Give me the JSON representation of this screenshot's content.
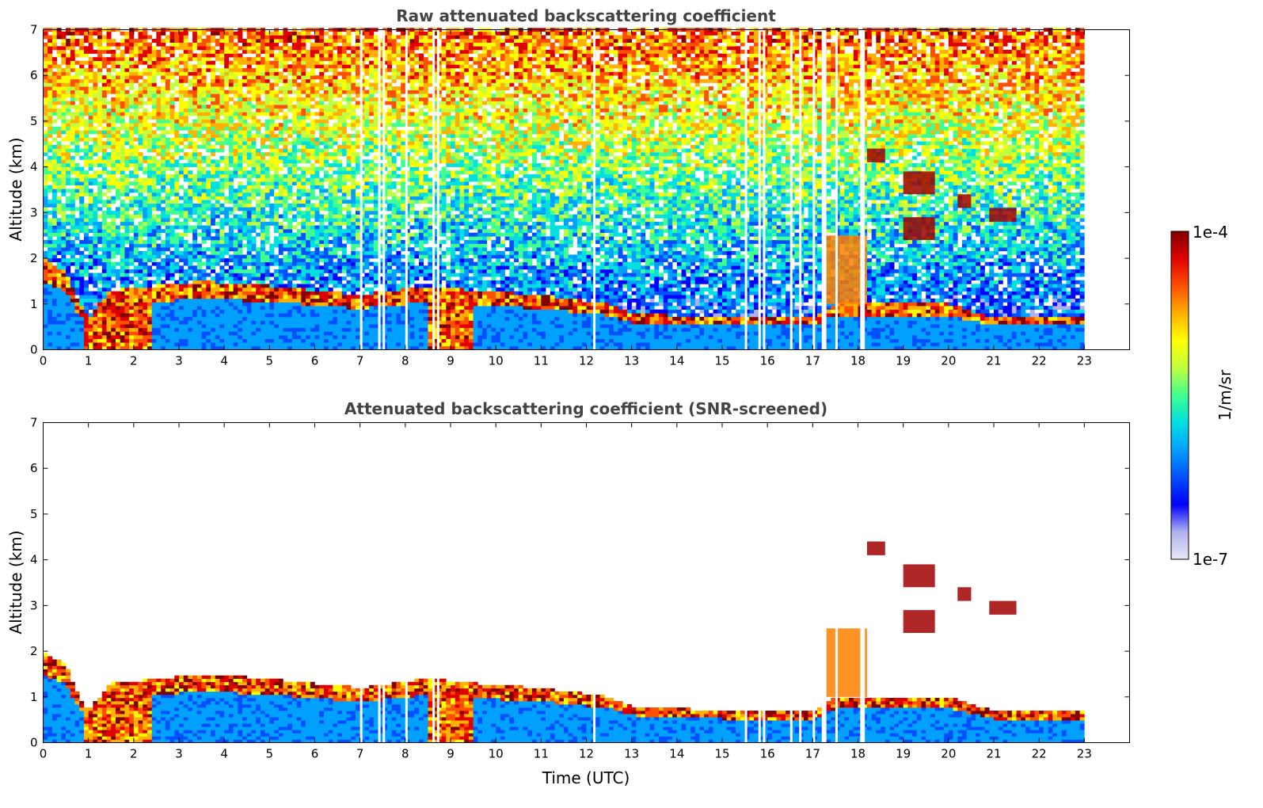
{
  "chart_data": [
    {
      "type": "heatmap",
      "title": "Raw attenuated backscattering coefficient",
      "xlabel": "",
      "ylabel": "Altitude (km)",
      "xlim": [
        0,
        24
      ],
      "ylim": [
        0,
        7
      ],
      "x_ticks": [
        "0",
        "1",
        "2",
        "3",
        "4",
        "5",
        "6",
        "7",
        "8",
        "9",
        "10",
        "11",
        "12",
        "13",
        "14",
        "15",
        "16",
        "17",
        "18",
        "19",
        "20",
        "21",
        "22",
        "23"
      ],
      "y_ticks": [
        "0",
        "1",
        "2",
        "3",
        "4",
        "5",
        "6",
        "7"
      ],
      "data_end_time": 23,
      "boundary_layer_top_km": [
        [
          0,
          2.0
        ],
        [
          0.5,
          1.7
        ],
        [
          0.8,
          1.0
        ],
        [
          1.0,
          0.7
        ],
        [
          1.5,
          1.3
        ],
        [
          2.5,
          1.4
        ],
        [
          3.5,
          1.5
        ],
        [
          5,
          1.4
        ],
        [
          7,
          1.2
        ],
        [
          8.5,
          1.4
        ],
        [
          9.5,
          1.3
        ],
        [
          11,
          1.2
        ],
        [
          12.5,
          1.0
        ],
        [
          13,
          0.8
        ],
        [
          15,
          0.7
        ],
        [
          17,
          0.7
        ],
        [
          17.5,
          1.0
        ],
        [
          20,
          1.0
        ],
        [
          21,
          0.7
        ],
        [
          23,
          0.7
        ]
      ],
      "cloud_layers": [
        {
          "t_start": 17.3,
          "t_end": 18.2,
          "alt_km": [
            1.0,
            2.5
          ],
          "level": "high"
        },
        {
          "t_start": 18.2,
          "t_end": 18.6,
          "alt_km": [
            4.1,
            4.4
          ],
          "level": "max"
        },
        {
          "t_start": 19.0,
          "t_end": 19.7,
          "alt_km": [
            3.4,
            3.9
          ],
          "level": "max"
        },
        {
          "t_start": 20.2,
          "t_end": 20.5,
          "alt_km": [
            3.1,
            3.4
          ],
          "level": "max"
        },
        {
          "t_start": 20.9,
          "t_end": 21.5,
          "alt_km": [
            2.8,
            3.1
          ],
          "level": "max"
        },
        {
          "t_start": 19.0,
          "t_end": 19.7,
          "alt_km": [
            2.4,
            2.9
          ],
          "level": "max"
        }
      ],
      "missing_data_times": [
        7.0,
        7.4,
        7.5,
        8.0,
        8.6,
        8.7,
        12.15,
        15.5,
        15.8,
        15.9,
        16.5,
        16.7,
        17.0,
        17.2,
        17.25,
        17.5,
        18.05,
        18.1
      ]
    },
    {
      "type": "heatmap",
      "title": "Attenuated backscattering coefficient (SNR-screened)",
      "xlabel": "Time (UTC)",
      "ylabel": "Altitude (km)",
      "xlim": [
        0,
        24
      ],
      "ylim": [
        0,
        7
      ],
      "x_ticks": [
        "0",
        "1",
        "2",
        "3",
        "4",
        "5",
        "6",
        "7",
        "8",
        "9",
        "10",
        "11",
        "12",
        "13",
        "14",
        "15",
        "16",
        "17",
        "18",
        "19",
        "20",
        "21",
        "22",
        "23"
      ],
      "y_ticks": [
        "0",
        "1",
        "2",
        "3",
        "4",
        "5",
        "6",
        "7"
      ],
      "data_end_time": 23,
      "screened": true
    }
  ],
  "colorbar": {
    "unit_label": "1/m/sr",
    "max_label": "1e-4",
    "min_label": "1e-7",
    "scale": "log",
    "colors": [
      "#e8e8f8",
      "#b0b0f0",
      "#0000ff",
      "#0050ff",
      "#00a0ff",
      "#00e0e0",
      "#40ff90",
      "#c0ff40",
      "#ffff00",
      "#ffb000",
      "#ff5000",
      "#e00000",
      "#800000"
    ]
  }
}
